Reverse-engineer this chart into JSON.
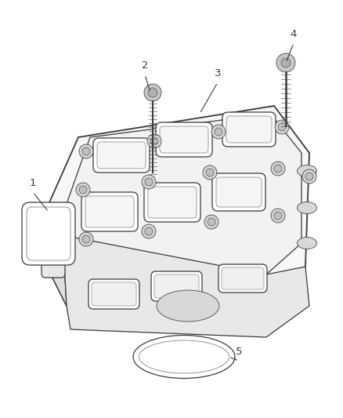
{
  "bg_color": "#ffffff",
  "line_color": "#3a3a3a",
  "label_color": "#3a3a3a",
  "lw_main": 0.9,
  "lw_thin": 0.55,
  "lw_thick": 1.3,
  "figsize": [
    4.38,
    5.33
  ],
  "dpi": 100
}
